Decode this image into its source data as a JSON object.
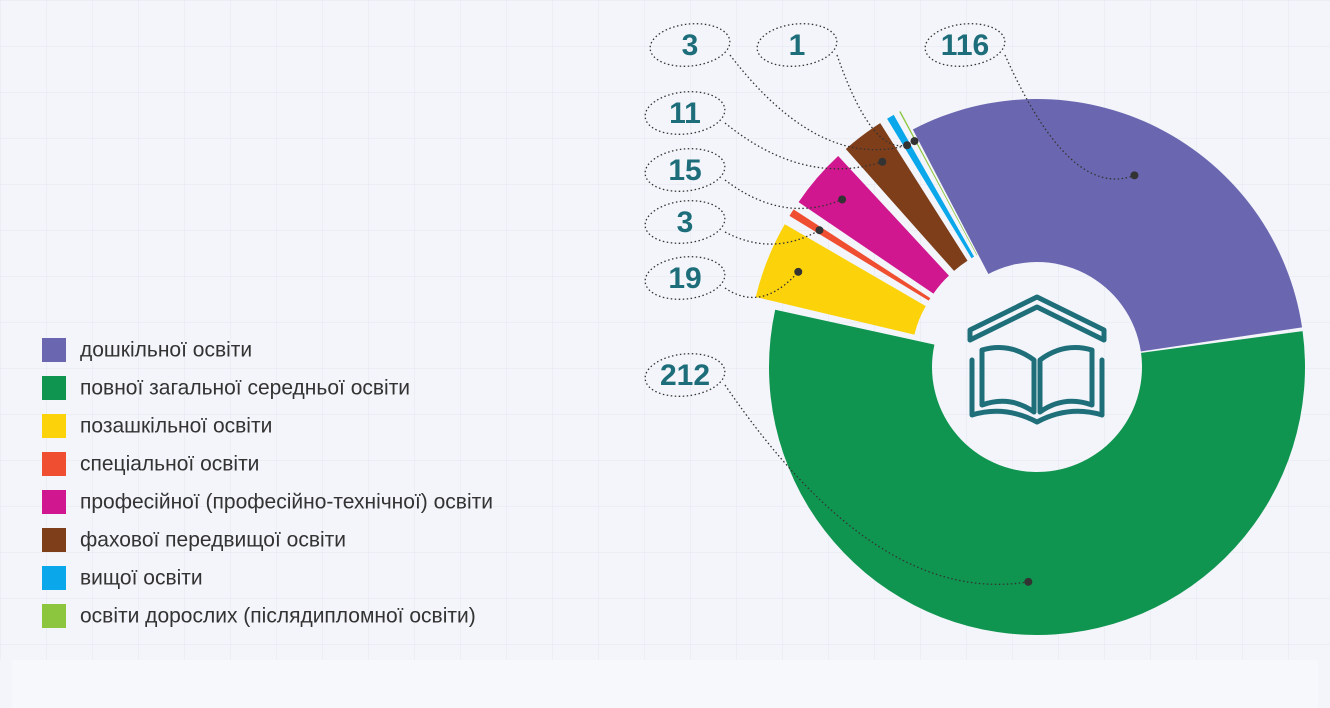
{
  "chart_data": {
    "type": "pie",
    "categories": [
      "дошкільної освіти",
      "повної загальної середньої освіти",
      "позашкільної освіти",
      "спеціальної освіти",
      "професійної (професійно-технічної) освіти",
      "фахової передвищої освіти",
      "вищої освіти",
      "освіти дорослих (післядипломної освіти)"
    ],
    "values": [
      116,
      212,
      19,
      3,
      15,
      11,
      3,
      1
    ],
    "colors": [
      "#6a66b0",
      "#0f954f",
      "#fcd20a",
      "#ef4e31",
      "#d0178f",
      "#7e3e1a",
      "#0aa7ea",
      "#8cc63f"
    ],
    "legend": "left"
  }
}
